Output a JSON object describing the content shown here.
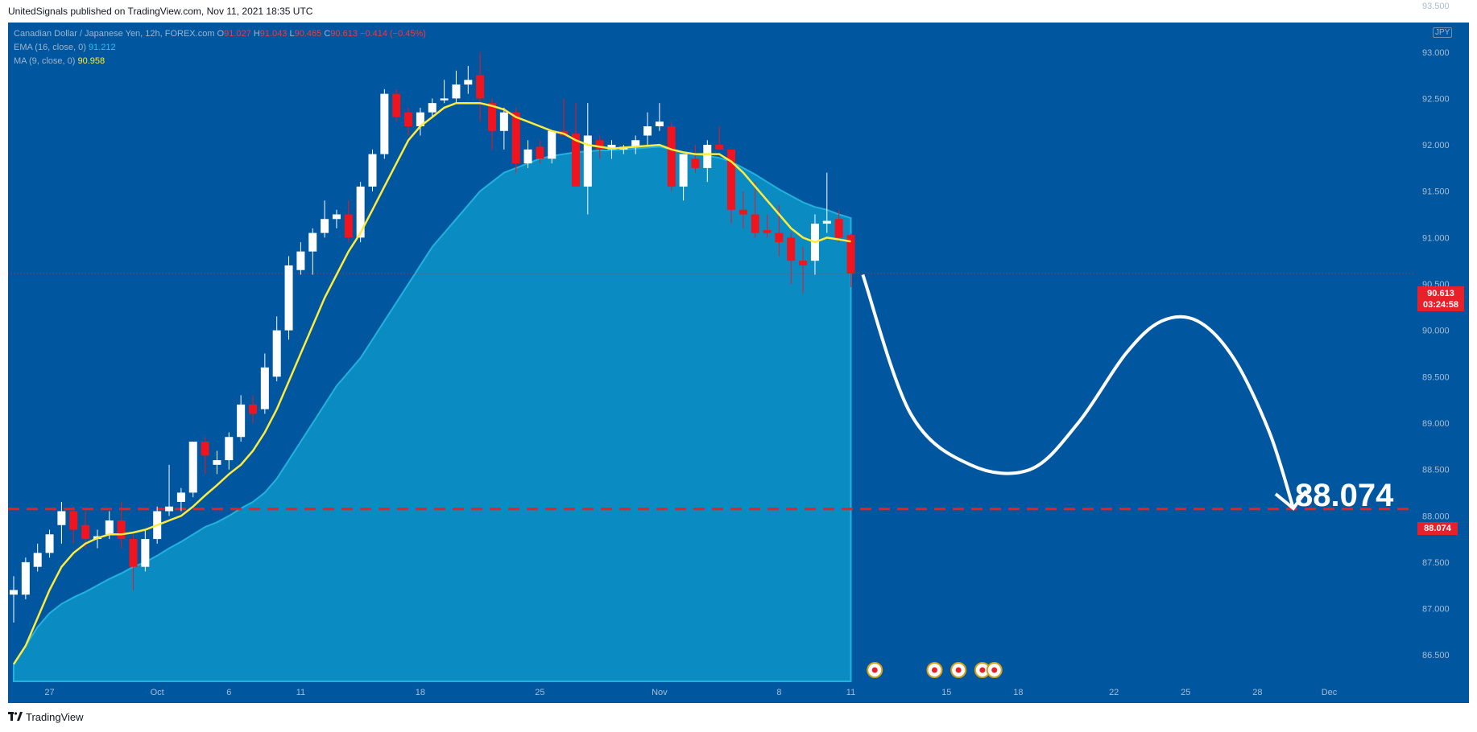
{
  "header": {
    "publisher": "UnitedSignals published on TradingView.com, Nov 11, 2021 18:35 UTC"
  },
  "legend": {
    "symbol": "Canadian Dollar / Japanese Yen, 12h, FOREX.com",
    "open_label": "O",
    "open": "91.027",
    "high_label": "H",
    "high": "91.043",
    "low_label": "L",
    "low": "90.465",
    "close_label": "C",
    "close": "90.613",
    "change": "−0.414 (−0.45%)",
    "ema_label": "EMA (16, close, 0)",
    "ema_value": "91.212",
    "ma_label": "MA (9, close, 0)",
    "ma_value": "90.958"
  },
  "currency": "JPY",
  "price_tag": {
    "price": "90.613",
    "countdown": "03:24:58"
  },
  "target": {
    "label": "88.074",
    "axis_label": "88.074"
  },
  "footer": {
    "brand": "TradingView"
  },
  "colors": {
    "background": "#0057a0",
    "bull": "#ffffff",
    "bear": "#f0141e",
    "ema_fill": "#0a8cc2",
    "ma_line": "#ffeb3b",
    "target_line": "#e8202a"
  },
  "chart_data": {
    "type": "candlestick",
    "y_ticks": [
      86.5,
      87.0,
      87.5,
      88.0,
      88.5,
      89.0,
      89.5,
      90.0,
      90.5,
      91.0,
      91.5,
      92.0,
      92.5,
      93.0,
      93.5
    ],
    "y_tick_labels": [
      "86.500",
      "87.000",
      "87.500",
      "88.000",
      "88.500",
      "89.000",
      "89.500",
      "90.000",
      "90.500",
      "91.000",
      "91.500",
      "92.000",
      "92.500",
      "93.000",
      "93.500"
    ],
    "ylim": [
      86.4,
      93.5
    ],
    "x_tick_labels": [
      {
        "label": "27",
        "bar": 3
      },
      {
        "label": "Oct",
        "bar": 12
      },
      {
        "label": "6",
        "bar": 18
      },
      {
        "label": "11",
        "bar": 24
      },
      {
        "label": "18",
        "bar": 34
      },
      {
        "label": "25",
        "bar": 44
      },
      {
        "label": "Nov",
        "bar": 54
      },
      {
        "label": "8",
        "bar": 64
      },
      {
        "label": "11",
        "bar": 70
      },
      {
        "label": "15",
        "bar": 78
      },
      {
        "label": "18",
        "bar": 84
      },
      {
        "label": "22",
        "bar": 92
      },
      {
        "label": "25",
        "bar": 98
      },
      {
        "label": "28",
        "bar": 104
      },
      {
        "label": "Dec",
        "bar": 110
      }
    ],
    "candles": [
      {
        "o": 87.15,
        "h": 87.35,
        "l": 86.85,
        "c": 87.2
      },
      {
        "o": 87.15,
        "h": 87.55,
        "l": 87.1,
        "c": 87.5
      },
      {
        "o": 87.45,
        "h": 87.7,
        "l": 87.4,
        "c": 87.6
      },
      {
        "o": 87.6,
        "h": 87.85,
        "l": 87.55,
        "c": 87.8
      },
      {
        "o": 87.9,
        "h": 88.15,
        "l": 87.7,
        "c": 88.05
      },
      {
        "o": 88.05,
        "h": 88.1,
        "l": 87.7,
        "c": 87.85
      },
      {
        "o": 87.9,
        "h": 88.05,
        "l": 87.65,
        "c": 87.75
      },
      {
        "o": 87.75,
        "h": 87.85,
        "l": 87.65,
        "c": 87.78
      },
      {
        "o": 87.8,
        "h": 88.05,
        "l": 87.75,
        "c": 87.95
      },
      {
        "o": 87.95,
        "h": 88.15,
        "l": 87.65,
        "c": 87.75
      },
      {
        "o": 87.75,
        "h": 87.8,
        "l": 87.2,
        "c": 87.45
      },
      {
        "o": 87.45,
        "h": 87.85,
        "l": 87.4,
        "c": 87.75
      },
      {
        "o": 87.75,
        "h": 88.1,
        "l": 87.7,
        "c": 88.05
      },
      {
        "o": 88.05,
        "h": 88.55,
        "l": 88.0,
        "c": 88.1
      },
      {
        "o": 88.15,
        "h": 88.3,
        "l": 88.05,
        "c": 88.25
      },
      {
        "o": 88.25,
        "h": 88.75,
        "l": 88.2,
        "c": 88.8
      },
      {
        "o": 88.8,
        "h": 88.85,
        "l": 88.45,
        "c": 88.65
      },
      {
        "o": 88.55,
        "h": 88.7,
        "l": 88.45,
        "c": 88.6
      },
      {
        "o": 88.6,
        "h": 88.9,
        "l": 88.5,
        "c": 88.85
      },
      {
        "o": 88.85,
        "h": 89.3,
        "l": 88.8,
        "c": 89.2
      },
      {
        "o": 89.2,
        "h": 89.3,
        "l": 89.0,
        "c": 89.1
      },
      {
        "o": 89.15,
        "h": 89.75,
        "l": 89.1,
        "c": 89.6
      },
      {
        "o": 89.5,
        "h": 90.15,
        "l": 89.45,
        "c": 90.0
      },
      {
        "o": 90.0,
        "h": 90.8,
        "l": 89.9,
        "c": 90.7
      },
      {
        "o": 90.65,
        "h": 90.95,
        "l": 90.6,
        "c": 90.85
      },
      {
        "o": 90.85,
        "h": 91.1,
        "l": 90.6,
        "c": 91.05
      },
      {
        "o": 91.05,
        "h": 91.4,
        "l": 91.0,
        "c": 91.2
      },
      {
        "o": 91.2,
        "h": 91.3,
        "l": 91.1,
        "c": 91.25
      },
      {
        "o": 91.25,
        "h": 91.4,
        "l": 90.95,
        "c": 91.0
      },
      {
        "o": 91.0,
        "h": 91.6,
        "l": 90.95,
        "c": 91.55
      },
      {
        "o": 91.55,
        "h": 91.95,
        "l": 91.5,
        "c": 91.9
      },
      {
        "o": 91.9,
        "h": 92.6,
        "l": 91.85,
        "c": 92.55
      },
      {
        "o": 92.55,
        "h": 92.6,
        "l": 92.25,
        "c": 92.3
      },
      {
        "o": 92.35,
        "h": 92.4,
        "l": 92.1,
        "c": 92.2
      },
      {
        "o": 92.2,
        "h": 92.4,
        "l": 92.1,
        "c": 92.35
      },
      {
        "o": 92.35,
        "h": 92.5,
        "l": 92.3,
        "c": 92.45
      },
      {
        "o": 92.48,
        "h": 92.7,
        "l": 92.45,
        "c": 92.5
      },
      {
        "o": 92.5,
        "h": 92.8,
        "l": 92.45,
        "c": 92.65
      },
      {
        "o": 92.65,
        "h": 92.85,
        "l": 92.55,
        "c": 92.7
      },
      {
        "o": 92.75,
        "h": 93.0,
        "l": 92.25,
        "c": 92.5
      },
      {
        "o": 92.45,
        "h": 92.5,
        "l": 91.95,
        "c": 92.15
      },
      {
        "o": 92.15,
        "h": 92.4,
        "l": 91.95,
        "c": 92.35
      },
      {
        "o": 92.35,
        "h": 92.4,
        "l": 91.7,
        "c": 91.8
      },
      {
        "o": 91.8,
        "h": 92.05,
        "l": 91.75,
        "c": 91.95
      },
      {
        "o": 91.98,
        "h": 92.05,
        "l": 91.8,
        "c": 91.85
      },
      {
        "o": 91.85,
        "h": 92.15,
        "l": 91.8,
        "c": 92.15
      },
      {
        "o": 92.15,
        "h": 92.5,
        "l": 92.1,
        "c": 92.1
      },
      {
        "o": 92.12,
        "h": 92.45,
        "l": 91.6,
        "c": 91.55
      },
      {
        "o": 91.55,
        "h": 92.45,
        "l": 91.25,
        "c": 92.1
      },
      {
        "o": 92.05,
        "h": 92.1,
        "l": 91.85,
        "c": 91.95
      },
      {
        "o": 91.95,
        "h": 92.05,
        "l": 91.85,
        "c": 92.0
      },
      {
        "o": 91.95,
        "h": 92.0,
        "l": 91.9,
        "c": 91.98
      },
      {
        "o": 91.98,
        "h": 92.1,
        "l": 91.9,
        "c": 92.05
      },
      {
        "o": 92.1,
        "h": 92.35,
        "l": 92.0,
        "c": 92.2
      },
      {
        "o": 92.2,
        "h": 92.45,
        "l": 92.15,
        "c": 92.25
      },
      {
        "o": 92.2,
        "h": 92.25,
        "l": 91.5,
        "c": 91.55
      },
      {
        "o": 91.55,
        "h": 91.9,
        "l": 91.4,
        "c": 91.9
      },
      {
        "o": 91.85,
        "h": 92.0,
        "l": 91.7,
        "c": 91.75
      },
      {
        "o": 91.75,
        "h": 92.05,
        "l": 91.6,
        "c": 92.0
      },
      {
        "o": 92.0,
        "h": 92.2,
        "l": 91.95,
        "c": 91.95
      },
      {
        "o": 91.95,
        "h": 91.95,
        "l": 91.15,
        "c": 91.3
      },
      {
        "o": 91.3,
        "h": 91.5,
        "l": 91.1,
        "c": 91.25
      },
      {
        "o": 91.25,
        "h": 91.6,
        "l": 91.0,
        "c": 91.05
      },
      {
        "o": 91.08,
        "h": 91.25,
        "l": 91.0,
        "c": 91.05
      },
      {
        "o": 91.05,
        "h": 91.35,
        "l": 90.8,
        "c": 90.95
      },
      {
        "o": 91.0,
        "h": 91.05,
        "l": 90.5,
        "c": 90.75
      },
      {
        "o": 90.75,
        "h": 90.9,
        "l": 90.4,
        "c": 90.7
      },
      {
        "o": 90.75,
        "h": 91.25,
        "l": 90.6,
        "c": 91.15
      },
      {
        "o": 91.15,
        "h": 91.7,
        "l": 91.05,
        "c": 91.18
      },
      {
        "o": 91.2,
        "h": 91.3,
        "l": 90.95,
        "c": 91.0
      },
      {
        "o": 91.027,
        "h": 91.043,
        "l": 90.465,
        "c": 90.613
      }
    ],
    "ema_fill": [
      86.4,
      86.6,
      86.8,
      86.95,
      87.05,
      87.12,
      87.18,
      87.25,
      87.32,
      87.38,
      87.45,
      87.5,
      87.57,
      87.65,
      87.72,
      87.8,
      87.88,
      87.93,
      88.0,
      88.08,
      88.15,
      88.25,
      88.4,
      88.6,
      88.8,
      89.0,
      89.2,
      89.4,
      89.55,
      89.7,
      89.9,
      90.1,
      90.3,
      90.5,
      90.7,
      90.9,
      91.05,
      91.2,
      91.35,
      91.5,
      91.6,
      91.7,
      91.75,
      91.8,
      91.85,
      91.88,
      91.9,
      91.92,
      91.93,
      91.94,
      91.94,
      91.95,
      91.96,
      91.97,
      91.98,
      91.95,
      91.92,
      91.9,
      91.88,
      91.86,
      91.82,
      91.75,
      91.68,
      91.6,
      91.52,
      91.45,
      91.38,
      91.33,
      91.3,
      91.25,
      91.21
    ],
    "ma_line": [
      86.4,
      86.6,
      86.9,
      87.2,
      87.45,
      87.6,
      87.7,
      87.76,
      87.8,
      87.8,
      87.82,
      87.85,
      87.9,
      87.95,
      88.0,
      88.1,
      88.22,
      88.33,
      88.45,
      88.55,
      88.7,
      88.9,
      89.15,
      89.45,
      89.75,
      90.05,
      90.35,
      90.6,
      90.85,
      91.05,
      91.3,
      91.55,
      91.8,
      92.05,
      92.2,
      92.3,
      92.4,
      92.45,
      92.45,
      92.45,
      92.42,
      92.38,
      92.3,
      92.25,
      92.2,
      92.15,
      92.12,
      92.05,
      92.0,
      91.98,
      91.96,
      91.97,
      91.98,
      91.99,
      92.0,
      91.95,
      91.92,
      91.9,
      91.9,
      91.9,
      91.82,
      91.7,
      91.55,
      91.4,
      91.25,
      91.1,
      91.0,
      90.95,
      91.0,
      90.98,
      90.958
    ],
    "forecast_path": [
      {
        "bar": 71,
        "y": 90.6
      },
      {
        "bar": 75,
        "y": 89.1
      },
      {
        "bar": 80,
        "y": 88.55
      },
      {
        "bar": 85,
        "y": 88.5
      },
      {
        "bar": 89,
        "y": 89.0
      },
      {
        "bar": 93,
        "y": 89.75
      },
      {
        "bar": 96,
        "y": 90.1
      },
      {
        "bar": 99,
        "y": 90.1
      },
      {
        "bar": 102,
        "y": 89.7
      },
      {
        "bar": 105,
        "y": 88.9
      },
      {
        "bar": 107,
        "y": 88.08
      }
    ],
    "target_level": 88.074,
    "current_price": 90.613,
    "event_markers": [
      {
        "bar": 72,
        "type": "ca"
      },
      {
        "bar": 77,
        "type": "jp"
      },
      {
        "bar": 79,
        "type": "jp"
      },
      {
        "bar": 81,
        "type": "jp"
      },
      {
        "bar": 82,
        "type": "jp"
      }
    ]
  }
}
